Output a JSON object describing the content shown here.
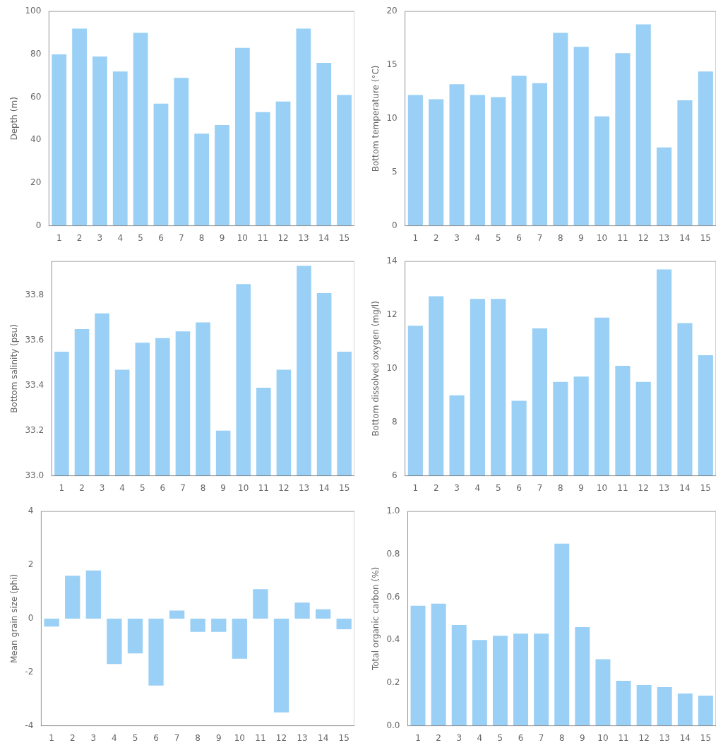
{
  "chart_data": [
    {
      "type": "bar",
      "categories": [
        "1",
        "2",
        "3",
        "4",
        "5",
        "6",
        "7",
        "8",
        "9",
        "10",
        "11",
        "12",
        "13",
        "14",
        "15"
      ],
      "values": [
        80,
        92,
        79,
        72,
        90,
        57,
        69,
        43,
        47,
        83,
        53,
        58,
        92,
        76,
        61
      ],
      "ylabel": "Depth (m)",
      "ylim": [
        0,
        100
      ],
      "yticks": [
        0,
        20,
        40,
        60,
        80,
        100
      ],
      "grid": false
    },
    {
      "type": "bar",
      "categories": [
        "1",
        "2",
        "3",
        "4",
        "5",
        "6",
        "7",
        "8",
        "9",
        "10",
        "11",
        "12",
        "13",
        "14",
        "15"
      ],
      "values": [
        12.2,
        11.8,
        13.2,
        12.2,
        12.0,
        14.0,
        13.3,
        18.0,
        16.7,
        10.2,
        16.1,
        18.8,
        7.3,
        11.7,
        14.4
      ],
      "ylabel": "Bottom temperature (°C)",
      "ylim": [
        0,
        20
      ],
      "yticks": [
        0,
        5,
        10,
        15,
        20
      ],
      "grid": false
    },
    {
      "type": "bar",
      "categories": [
        "1",
        "2",
        "3",
        "4",
        "5",
        "6",
        "7",
        "8",
        "9",
        "10",
        "11",
        "12",
        "13",
        "14",
        "15"
      ],
      "values": [
        33.55,
        33.65,
        33.72,
        33.47,
        33.59,
        33.61,
        33.64,
        33.68,
        33.2,
        33.85,
        33.39,
        33.47,
        33.93,
        33.81,
        33.55
      ],
      "ylabel": "Bottom salinity (psu)",
      "ylim": [
        33.0,
        33.95
      ],
      "yticks": [
        {
          "value": 33.0,
          "label": "33.0"
        },
        33.2,
        33.4,
        33.6,
        33.8
      ],
      "grid": false
    },
    {
      "type": "bar",
      "categories": [
        "1",
        "2",
        "3",
        "4",
        "5",
        "6",
        "7",
        "8",
        "9",
        "10",
        "11",
        "12",
        "13",
        "14",
        "15"
      ],
      "values": [
        11.6,
        12.7,
        9.0,
        12.6,
        12.6,
        8.8,
        11.5,
        9.5,
        9.7,
        11.9,
        10.1,
        9.5,
        13.7,
        11.7,
        10.5
      ],
      "ylabel": "Bottom dissolved oxygen (mg/l)",
      "ylim": [
        6,
        14
      ],
      "yticks": [
        6,
        8,
        10,
        12,
        14
      ],
      "grid": false
    },
    {
      "type": "bar",
      "categories": [
        "1",
        "2",
        "3",
        "4",
        "5",
        "6",
        "7",
        "8",
        "9",
        "10",
        "11",
        "12",
        "13",
        "14",
        "15"
      ],
      "values": [
        -0.3,
        1.6,
        1.8,
        -1.7,
        -1.3,
        -2.5,
        0.3,
        -0.5,
        -0.5,
        -1.5,
        1.1,
        -3.5,
        0.6,
        0.35,
        -0.4
      ],
      "ylabel": "Mean grain size (phi)",
      "ylim": [
        -4,
        4
      ],
      "yticks": [
        -4,
        -2,
        0,
        2,
        4
      ],
      "grid": false
    },
    {
      "type": "bar",
      "categories": [
        "1",
        "2",
        "3",
        "4",
        "5",
        "6",
        "7",
        "8",
        "9",
        "10",
        "11",
        "12",
        "13",
        "14",
        "15"
      ],
      "values": [
        0.56,
        0.57,
        0.47,
        0.4,
        0.42,
        0.43,
        0.43,
        0.85,
        0.46,
        0.31,
        0.21,
        0.19,
        0.18,
        0.15,
        0.14
      ],
      "ylabel": "Total organic carbon (%)",
      "ylim": [
        0.0,
        1.0
      ],
      "yticks": [
        {
          "value": 0.0,
          "label": "0.0"
        },
        0.2,
        0.4,
        0.6,
        0.8,
        {
          "value": 1.0,
          "label": "1.0"
        }
      ],
      "grid": false
    }
  ]
}
